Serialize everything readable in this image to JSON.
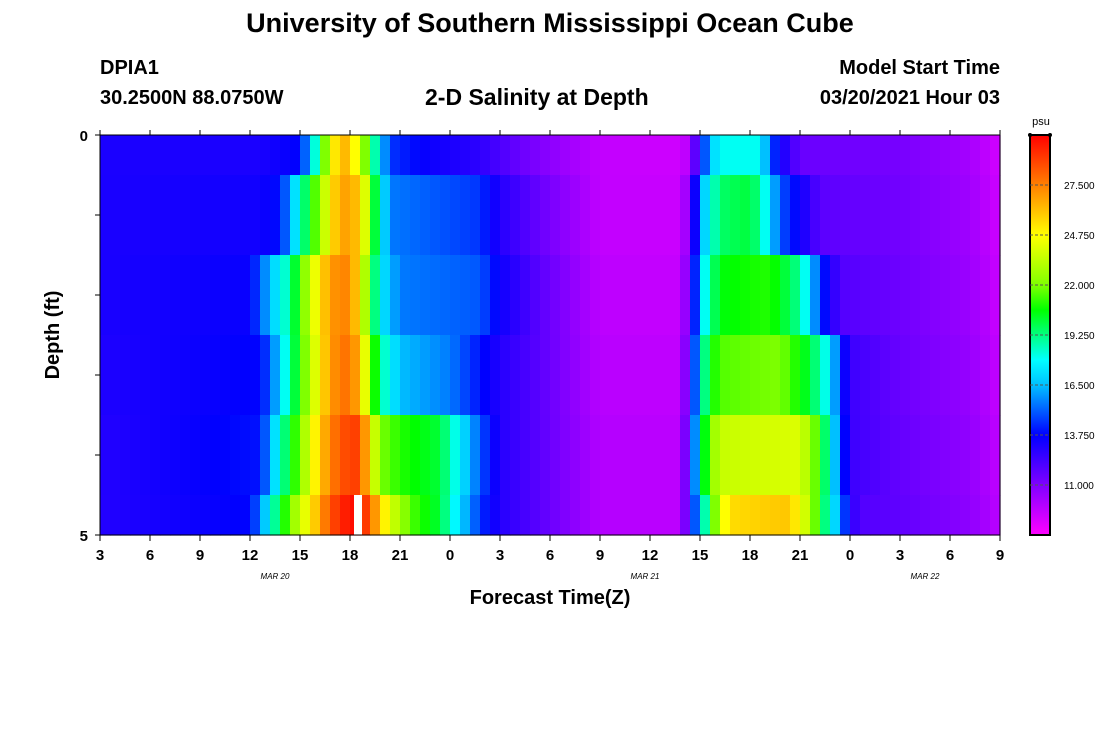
{
  "header": {
    "title": "University of Southern Mississippi Ocean Cube",
    "station_id": "DPIA1",
    "coordinates": "30.2500N 88.0750W",
    "plot_title": "2-D Salinity at Depth",
    "model_start_label": "Model Start Time",
    "model_start_time": "03/20/2021 Hour 03"
  },
  "footer": {
    "title": "University of Southern Mississippi Ocean Cube"
  },
  "chart_data": {
    "type": "heatmap",
    "title": "2-D Salinity at Depth",
    "xlabel": "Forecast Time(Z)",
    "ylabel": "Depth (ft)",
    "x_tick_labels": [
      "3",
      "6",
      "9",
      "12",
      "15",
      "18",
      "21",
      "0",
      "3",
      "6",
      "9",
      "12",
      "15",
      "18",
      "21",
      "0",
      "3",
      "6",
      "9"
    ],
    "date_labels": [
      {
        "label": "MAR 20",
        "tick_index": 3.5
      },
      {
        "label": "MAR 21",
        "tick_index": 10.9
      },
      {
        "label": "MAR 22",
        "tick_index": 16.5
      }
    ],
    "y_tick_labels": [
      "0",
      "5"
    ],
    "ylim": [
      0,
      5
    ],
    "colorbar": {
      "unit": "psu",
      "min": 8.25,
      "max": 30.25,
      "ticks": [
        "27.500",
        "24.750",
        "22.000",
        "19.250",
        "16.500",
        "13.750",
        "11.000"
      ],
      "tick_values": [
        27.5,
        24.75,
        22.0,
        19.25,
        16.5,
        13.75,
        11.0
      ],
      "colors": [
        "#ff00ff",
        "#c000ff",
        "#8000ff",
        "#4000ff",
        "#0000ff",
        "#0060ff",
        "#00c0ff",
        "#00ffff",
        "#00ff80",
        "#00ff00",
        "#80ff00",
        "#c0ff00",
        "#ffff00",
        "#ffc000",
        "#ff8000",
        "#ff4000",
        "#ff0000"
      ]
    },
    "x_range": [
      0,
      90
    ],
    "layers": [
      {
        "depth_range": [
          0.0,
          0.5
        ],
        "profile": [
          [
            0,
            13.2
          ],
          [
            16,
            13.2
          ],
          [
            20,
            13.8
          ],
          [
            21,
            16.5
          ],
          [
            22,
            20
          ],
          [
            23,
            24
          ],
          [
            24,
            26.5
          ],
          [
            25,
            26
          ],
          [
            26,
            23.5
          ],
          [
            27,
            20.5
          ],
          [
            28,
            17
          ],
          [
            29,
            14.5
          ],
          [
            33,
            13.5
          ],
          [
            38,
            12.8
          ],
          [
            42,
            11.5
          ],
          [
            46,
            10.5
          ],
          [
            50,
            9.6
          ],
          [
            58,
            9.3
          ],
          [
            59,
            10
          ],
          [
            60,
            13.5
          ],
          [
            61,
            16.5
          ],
          [
            62,
            18
          ],
          [
            66,
            18
          ],
          [
            67,
            15
          ],
          [
            68,
            13.5
          ],
          [
            70,
            11.5
          ],
          [
            80,
            11.2
          ],
          [
            87,
            10.2
          ],
          [
            90,
            9.2
          ]
        ]
      },
      {
        "depth_range": [
          0.5,
          1.5
        ],
        "profile": [
          [
            0,
            13.2
          ],
          [
            16,
            13.4
          ],
          [
            18,
            14
          ],
          [
            19,
            16
          ],
          [
            20,
            18.5
          ],
          [
            22,
            22.5
          ],
          [
            24,
            27
          ],
          [
            26,
            26
          ],
          [
            27,
            22
          ],
          [
            28,
            18
          ],
          [
            29,
            15.5
          ],
          [
            38,
            14.5
          ],
          [
            40,
            13
          ],
          [
            44,
            11.5
          ],
          [
            50,
            9.6
          ],
          [
            58,
            9.4
          ],
          [
            59,
            11
          ],
          [
            60,
            16
          ],
          [
            61,
            18
          ],
          [
            62,
            19.5
          ],
          [
            65,
            20
          ],
          [
            66,
            19
          ],
          [
            67,
            17
          ],
          [
            68,
            15
          ],
          [
            70,
            13.5
          ],
          [
            72,
            11.8
          ],
          [
            80,
            11.3
          ],
          [
            87,
            10.3
          ],
          [
            90,
            9.3
          ]
        ]
      },
      {
        "depth_range": [
          1.5,
          2.5
        ],
        "profile": [
          [
            0,
            13.2
          ],
          [
            15,
            13.6
          ],
          [
            16,
            15
          ],
          [
            17,
            16.5
          ],
          [
            19,
            19
          ],
          [
            21,
            23.5
          ],
          [
            23,
            27
          ],
          [
            25,
            27.5
          ],
          [
            26,
            25
          ],
          [
            27,
            21
          ],
          [
            28,
            17.5
          ],
          [
            30,
            15.5
          ],
          [
            38,
            15
          ],
          [
            40,
            13.5
          ],
          [
            44,
            11.8
          ],
          [
            50,
            9.7
          ],
          [
            58,
            9.5
          ],
          [
            59,
            11.5
          ],
          [
            60,
            17
          ],
          [
            61,
            19
          ],
          [
            62,
            20.5
          ],
          [
            67,
            21
          ],
          [
            70,
            19
          ],
          [
            71,
            17
          ],
          [
            72,
            14.5
          ],
          [
            74,
            12
          ],
          [
            80,
            11.4
          ],
          [
            87,
            10.4
          ],
          [
            90,
            9.4
          ]
        ]
      },
      {
        "depth_range": [
          2.5,
          3.5
        ],
        "profile": [
          [
            0,
            13.1
          ],
          [
            16,
            13.8
          ],
          [
            17,
            15
          ],
          [
            18,
            17
          ],
          [
            20,
            21
          ],
          [
            22,
            25
          ],
          [
            23,
            27
          ],
          [
            25,
            28
          ],
          [
            26,
            26
          ],
          [
            27,
            22.5
          ],
          [
            28,
            19
          ],
          [
            30,
            16.5
          ],
          [
            35,
            15.5
          ],
          [
            37,
            14.5
          ],
          [
            40,
            13
          ],
          [
            44,
            11.8
          ],
          [
            50,
            9.8
          ],
          [
            58,
            9.6
          ],
          [
            59,
            12
          ],
          [
            60,
            18
          ],
          [
            61,
            20.5
          ],
          [
            62,
            21.5
          ],
          [
            68,
            22
          ],
          [
            71,
            20
          ],
          [
            73,
            17.5
          ],
          [
            74,
            14.5
          ],
          [
            75,
            12.5
          ],
          [
            80,
            11.5
          ],
          [
            87,
            10.5
          ],
          [
            90,
            9.5
          ]
        ]
      },
      {
        "depth_range": [
          3.5,
          4.5
        ],
        "profile": [
          [
            0,
            13
          ],
          [
            16,
            14
          ],
          [
            17,
            16
          ],
          [
            18,
            18.5
          ],
          [
            20,
            22
          ],
          [
            22,
            26
          ],
          [
            24,
            28.5
          ],
          [
            26,
            29
          ],
          [
            27,
            25
          ],
          [
            28,
            22
          ],
          [
            30,
            21
          ],
          [
            34,
            20
          ],
          [
            36,
            17.5
          ],
          [
            38,
            15
          ],
          [
            40,
            13
          ],
          [
            44,
            11.8
          ],
          [
            50,
            9.9
          ],
          [
            58,
            9.7
          ],
          [
            59,
            12.5
          ],
          [
            60,
            19
          ],
          [
            61,
            22
          ],
          [
            62,
            23.5
          ],
          [
            70,
            24
          ],
          [
            72,
            21
          ],
          [
            73,
            18
          ],
          [
            74,
            15
          ],
          [
            75,
            12.5
          ],
          [
            80,
            11.6
          ],
          [
            87,
            10.6
          ],
          [
            90,
            9.6
          ]
        ]
      },
      {
        "depth_range": [
          4.5,
          5.0
        ],
        "profile": [
          [
            0,
            13
          ],
          [
            15,
            13.8
          ],
          [
            16,
            15.5
          ],
          [
            17,
            18
          ],
          [
            19,
            22
          ],
          [
            21,
            25
          ],
          [
            23,
            28.5
          ],
          [
            25,
            30
          ],
          [
            26,
            30
          ],
          [
            27,
            28
          ],
          [
            29,
            24
          ],
          [
            31,
            21.5
          ],
          [
            34,
            20
          ],
          [
            36,
            17
          ],
          [
            38,
            14.5
          ],
          [
            40,
            13
          ],
          [
            44,
            11.8
          ],
          [
            50,
            9.9
          ],
          [
            58,
            9.7
          ],
          [
            59,
            12.5
          ],
          [
            60,
            17.5
          ],
          [
            61,
            20
          ],
          [
            62,
            24
          ],
          [
            63,
            25.5
          ],
          [
            69,
            26
          ],
          [
            71,
            23
          ],
          [
            72,
            20.5
          ],
          [
            73,
            18
          ],
          [
            74,
            16
          ],
          [
            75,
            13
          ],
          [
            76,
            12
          ],
          [
            80,
            11.7
          ],
          [
            87,
            10.7
          ],
          [
            90,
            9.7
          ]
        ]
      }
    ],
    "missing_cell": {
      "x_range": [
        25.4,
        26.2
      ],
      "depth_range": [
        4.5,
        5.0
      ]
    }
  }
}
